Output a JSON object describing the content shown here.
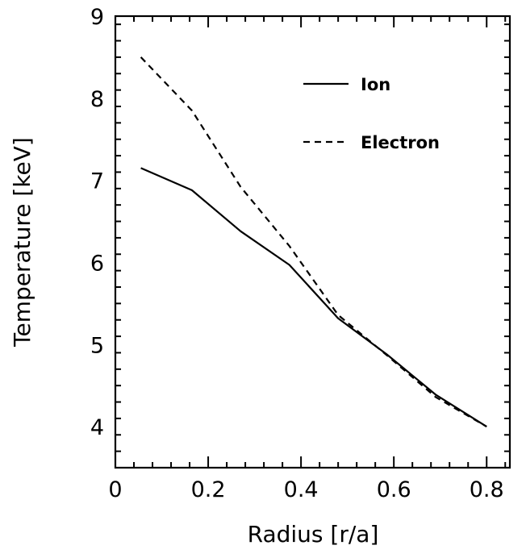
{
  "chart_data": {
    "type": "line",
    "xlabel": "Radius [r/a]",
    "ylabel": "Temperature [keV]",
    "xlim": [
      0,
      0.85
    ],
    "ylim": [
      3.5,
      9
    ],
    "xticks": [
      0,
      0.2,
      0.4,
      0.6,
      0.8
    ],
    "xtick_labels": [
      "0",
      "0.2",
      "0.4",
      "0.6",
      "0.8"
    ],
    "yticks": [
      4,
      5,
      6,
      7,
      8,
      9
    ],
    "ytick_labels": [
      "4",
      "5",
      "6",
      "7",
      "8",
      "9"
    ],
    "x_minor_step": 0.04,
    "y_minor_step": 0.2,
    "grid": false,
    "legend_position": "top-right",
    "series": [
      {
        "name": "Ion",
        "style": "solid",
        "color": "#000000",
        "x": [
          0.055,
          0.165,
          0.27,
          0.375,
          0.48,
          0.585,
          0.69,
          0.8
        ],
        "y": [
          7.15,
          6.88,
          6.38,
          5.97,
          5.32,
          4.88,
          4.39,
          4.0
        ]
      },
      {
        "name": "Electron",
        "style": "dashed",
        "color": "#000000",
        "x": [
          0.055,
          0.165,
          0.27,
          0.375,
          0.48,
          0.585,
          0.69,
          0.8
        ],
        "y": [
          8.5,
          7.85,
          6.92,
          6.2,
          5.36,
          4.87,
          4.36,
          4.0
        ]
      }
    ]
  }
}
